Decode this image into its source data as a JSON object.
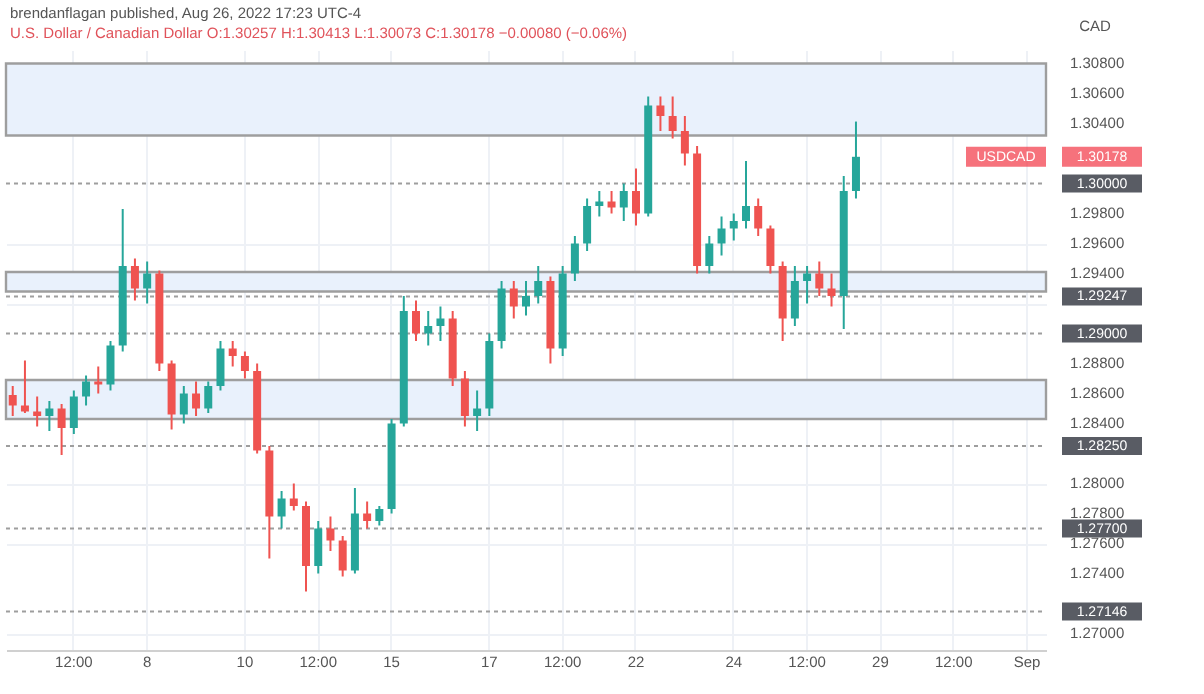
{
  "chart_data": {
    "type": "candlestick",
    "title": "brendanflagan published, Aug 26, 2022 17:23 UTC-4",
    "subtitle": "U.S. Dollar / Canadian Dollar  O:1.30257 H:1.30413 L:1.30073 C:1.30178 −0.00080 (−0.06%)",
    "ylabel": "CAD",
    "categories": [
      null,
      null,
      null,
      null,
      null,
      "12:00",
      null,
      null,
      null,
      null,
      null,
      "8",
      null,
      null,
      null,
      null,
      null,
      null,
      null,
      "10",
      null,
      null,
      null,
      null,
      null,
      "12:00",
      null,
      null,
      null,
      null,
      null,
      "15",
      null,
      null,
      null,
      null,
      null,
      null,
      null,
      "17",
      null,
      null,
      null,
      null,
      null,
      "12:00",
      null,
      null,
      null,
      null,
      null,
      "22",
      null,
      null,
      null,
      null,
      null,
      null,
      null,
      "24",
      null,
      null,
      null,
      null,
      null,
      "12:00",
      null,
      null,
      null,
      null,
      null,
      "29",
      null,
      null,
      null,
      null,
      null,
      "12:00",
      null,
      null,
      null,
      null,
      null,
      "Sep",
      null
    ],
    "ohlc": [
      [
        1.2859,
        1.2865,
        1.2845,
        1.2852
      ],
      [
        1.2852,
        1.2882,
        1.2847,
        1.2848
      ],
      [
        1.2848,
        1.2858,
        1.2838,
        1.2845
      ],
      [
        1.2845,
        1.2855,
        1.2835,
        1.285
      ],
      [
        1.285,
        1.2853,
        1.2819,
        1.2837
      ],
      [
        1.2837,
        1.2862,
        1.2833,
        1.2858
      ],
      [
        1.2858,
        1.2872,
        1.2852,
        1.2868
      ],
      [
        1.2868,
        1.2878,
        1.286,
        1.2866
      ],
      [
        1.2866,
        1.2895,
        1.2862,
        1.2892
      ],
      [
        1.2892,
        1.2983,
        1.2888,
        1.2945
      ],
      [
        1.2945,
        1.295,
        1.2922,
        1.293
      ],
      [
        1.293,
        1.2948,
        1.292,
        1.294
      ],
      [
        1.294,
        1.2942,
        1.2875,
        1.288
      ],
      [
        1.288,
        1.2882,
        1.2836,
        1.2846
      ],
      [
        1.2846,
        1.2865,
        1.284,
        1.286
      ],
      [
        1.286,
        1.2868,
        1.2845,
        1.285
      ],
      [
        1.285,
        1.2868,
        1.2847,
        1.2865
      ],
      [
        1.2865,
        1.2895,
        1.2862,
        1.289
      ],
      [
        1.289,
        1.2895,
        1.2878,
        1.2885
      ],
      [
        1.2885,
        1.2888,
        1.287,
        1.2875
      ],
      [
        1.2875,
        1.288,
        1.282,
        1.2822
      ],
      [
        1.2822,
        1.2825,
        1.275,
        1.2778
      ],
      [
        1.2778,
        1.2795,
        1.277,
        1.279
      ],
      [
        1.279,
        1.28,
        1.2782,
        1.2785
      ],
      [
        1.2785,
        1.2788,
        1.2728,
        1.2745
      ],
      [
        1.2745,
        1.2775,
        1.274,
        1.277
      ],
      [
        1.277,
        1.2778,
        1.2755,
        1.2762
      ],
      [
        1.2762,
        1.2765,
        1.2738,
        1.2742
      ],
      [
        1.2742,
        1.2797,
        1.274,
        1.278
      ],
      [
        1.278,
        1.2788,
        1.277,
        1.2775
      ],
      [
        1.2775,
        1.2785,
        1.2772,
        1.2783
      ],
      [
        1.2783,
        1.2843,
        1.278,
        1.284
      ],
      [
        1.284,
        1.2925,
        1.2838,
        1.2915
      ],
      [
        1.2915,
        1.2922,
        1.2895,
        1.29
      ],
      [
        1.29,
        1.2915,
        1.2892,
        1.2905
      ],
      [
        1.2905,
        1.2918,
        1.2895,
        1.291
      ],
      [
        1.291,
        1.2915,
        1.2865,
        1.287
      ],
      [
        1.287,
        1.2875,
        1.2838,
        1.2845
      ],
      [
        1.2845,
        1.2862,
        1.2835,
        1.285
      ],
      [
        1.285,
        1.29,
        1.2845,
        1.2895
      ],
      [
        1.2895,
        1.2935,
        1.289,
        1.293
      ],
      [
        1.293,
        1.2935,
        1.291,
        1.2918
      ],
      [
        1.2918,
        1.2935,
        1.2912,
        1.2925
      ],
      [
        1.2925,
        1.2945,
        1.292,
        1.2935
      ],
      [
        1.2935,
        1.2938,
        1.288,
        1.289
      ],
      [
        1.289,
        1.2945,
        1.2885,
        1.294
      ],
      [
        1.294,
        1.2965,
        1.2935,
        1.296
      ],
      [
        1.296,
        1.299,
        1.2955,
        1.2985
      ],
      [
        1.2985,
        1.2995,
        1.2978,
        1.2988
      ],
      [
        1.2988,
        1.2995,
        1.298,
        1.2984
      ],
      [
        1.2984,
        1.3,
        1.2975,
        1.2995
      ],
      [
        1.2995,
        1.301,
        1.2972,
        1.298
      ],
      [
        1.298,
        1.3058,
        1.2978,
        1.3052
      ],
      [
        1.3052,
        1.3058,
        1.3035,
        1.3045
      ],
      [
        1.3045,
        1.3058,
        1.303,
        1.3035
      ],
      [
        1.3035,
        1.3045,
        1.3012,
        1.302
      ],
      [
        1.302,
        1.3025,
        1.294,
        1.2945
      ],
      [
        1.2945,
        1.2965,
        1.294,
        1.296
      ],
      [
        1.296,
        1.2978,
        1.2952,
        1.297
      ],
      [
        1.297,
        1.298,
        1.2962,
        1.2975
      ],
      [
        1.2975,
        1.3015,
        1.297,
        1.2985
      ],
      [
        1.2985,
        1.299,
        1.2965,
        1.297
      ],
      [
        1.297,
        1.2972,
        1.294,
        1.2945
      ],
      [
        1.2945,
        1.2948,
        1.2895,
        1.291
      ],
      [
        1.291,
        1.2945,
        1.2905,
        1.2935
      ],
      [
        1.2935,
        1.2945,
        1.292,
        1.294
      ],
      [
        1.294,
        1.2948,
        1.2925,
        1.293
      ],
      [
        1.293,
        1.294,
        1.2918,
        1.2925
      ],
      [
        1.2925,
        1.3005,
        1.2903,
        1.2995
      ],
      [
        1.2995,
        1.30413,
        1.299,
        1.30178
      ],
      null,
      null,
      null,
      null,
      null,
      null,
      null,
      null,
      null,
      null,
      null,
      null,
      null,
      null,
      null
    ],
    "colors": [
      "#ef5350",
      "#ef5350",
      "#ef5350",
      "#26a69a",
      "#ef5350",
      "#26a69a",
      "#26a69a",
      "#ef5350",
      "#26a69a",
      "#26a69a",
      "#ef5350",
      "#26a69a",
      "#ef5350",
      "#ef5350",
      "#26a69a",
      "#ef5350",
      "#26a69a",
      "#26a69a",
      "#ef5350",
      "#ef5350",
      "#ef5350",
      "#ef5350",
      "#26a69a",
      "#ef5350",
      "#ef5350",
      "#26a69a",
      "#ef5350",
      "#ef5350",
      "#26a69a",
      "#ef5350",
      "#26a69a",
      "#26a69a",
      "#26a69a",
      "#ef5350",
      "#26a69a",
      "#26a69a",
      "#ef5350",
      "#ef5350",
      "#26a69a",
      "#26a69a",
      "#26a69a",
      "#ef5350",
      "#26a69a",
      "#26a69a",
      "#ef5350",
      "#26a69a",
      "#26a69a",
      "#26a69a",
      "#26a69a",
      "#ef5350",
      "#26a69a",
      "#ef5350",
      "#26a69a",
      "#ef5350",
      "#ef5350",
      "#ef5350",
      "#ef5350",
      "#26a69a",
      "#26a69a",
      "#26a69a",
      "#26a69a",
      "#ef5350",
      "#ef5350",
      "#ef5350",
      "#26a69a",
      "#26a69a",
      "#ef5350",
      "#ef5350",
      "#26a69a",
      "#26a69a",
      null,
      null,
      null,
      null,
      null,
      null,
      null,
      null,
      null,
      null,
      null,
      null,
      null,
      null,
      null
    ],
    "ylim": [
      1.2689,
      1.3089
    ],
    "yticks": [
      {
        "value": 1.27,
        "label": "1.27000"
      },
      {
        "value": 1.274,
        "label": "1.27400"
      },
      {
        "value": 1.276,
        "label": "1.27600"
      },
      {
        "value": 1.278,
        "label": "1.27800"
      },
      {
        "value": 1.28,
        "label": "1.28000"
      },
      {
        "value": 1.284,
        "label": "1.28400"
      },
      {
        "value": 1.286,
        "label": "1.28600"
      },
      {
        "value": 1.288,
        "label": "1.28800"
      },
      {
        "value": 1.292,
        "label": null
      },
      {
        "value": 1.294,
        "label": "1.29400"
      },
      {
        "value": 1.296,
        "label": "1.29600"
      },
      {
        "value": 1.298,
        "label": "1.29800"
      },
      {
        "value": 1.304,
        "label": "1.30400"
      },
      {
        "value": 1.306,
        "label": "1.30600"
      },
      {
        "value": 1.308,
        "label": "1.30800"
      }
    ],
    "grid": true,
    "bands": [
      {
        "axis": "y",
        "from": 1.3032,
        "to": 1.308,
        "label": null,
        "color": "#e9f1fc"
      },
      {
        "axis": "y",
        "from": 1.2928,
        "to": 1.2941,
        "label": null,
        "color": "#e9f1fc"
      },
      {
        "axis": "y",
        "from": 1.2843,
        "to": 1.2869,
        "label": null,
        "color": "#e9f1fc"
      }
    ],
    "ref_lines": [
      {
        "axis": "y",
        "value": 1.3,
        "label": "1.30000",
        "color": "#9e9e9e",
        "line_style": "dotted"
      },
      {
        "axis": "y",
        "value": 1.29247,
        "label": "1.29247",
        "color": "#9e9e9e",
        "line_style": "dotted"
      },
      {
        "axis": "y",
        "value": 1.29,
        "label": "1.29000",
        "color": "#9e9e9e",
        "line_style": "dotted"
      },
      {
        "axis": "y",
        "value": 1.2825,
        "label": "1.28250",
        "color": "#9e9e9e",
        "line_style": "dotted"
      },
      {
        "axis": "y",
        "value": 1.277,
        "label": "1.27700",
        "color": "#9e9e9e",
        "line_style": "dotted"
      },
      {
        "axis": "y",
        "value": 1.27146,
        "label": "1.27146",
        "color": "#9e9e9e",
        "line_style": "dotted"
      }
    ],
    "annotations": [
      "1.30178",
      "USDCAD"
    ]
  }
}
